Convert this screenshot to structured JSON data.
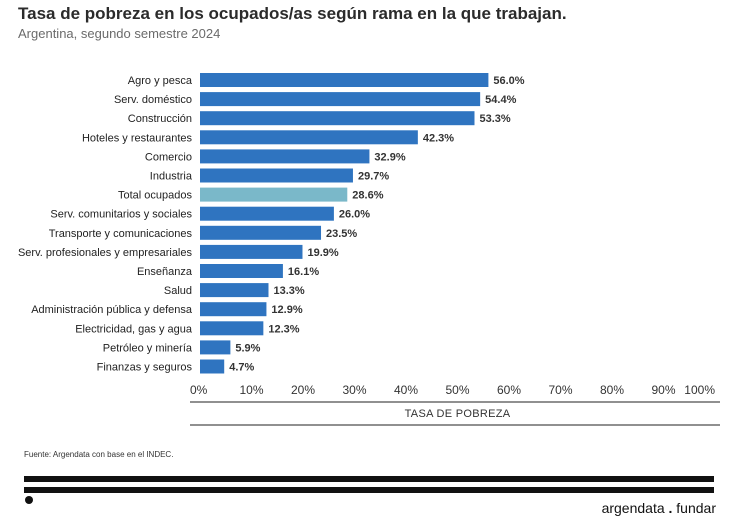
{
  "header": {
    "title": "Tasa de pobreza en los ocupados/as según rama en la que trabajan.",
    "subtitle": "Argentina, segundo semestre 2024"
  },
  "footer": {
    "source": "Fuente: Argendata con base en el INDEC.",
    "brand_left": "argendata",
    "brand_sep": ".",
    "brand_right": "fundar"
  },
  "colors": {
    "bar": "#2f74c0",
    "highlight": "#7ab8c9",
    "axis": "#222222"
  },
  "chart_data": {
    "type": "bar",
    "orientation": "horizontal",
    "categories": [
      "Agro y pesca",
      "Serv. doméstico",
      "Construcción",
      "Hoteles y restaurantes",
      "Comercio",
      "Industria",
      "Total ocupados",
      "Serv. comunitarios y sociales",
      "Transporte y comunicaciones",
      "Serv. profesionales y empresariales",
      "Enseñanza",
      "Salud",
      "Administración pública y defensa",
      "Electricidad, gas y agua",
      "Petróleo y minería",
      "Finanzas y seguros"
    ],
    "values": [
      56.0,
      54.4,
      53.3,
      42.3,
      32.9,
      29.7,
      28.6,
      26.0,
      23.5,
      19.9,
      16.1,
      13.3,
      12.9,
      12.3,
      5.9,
      4.7
    ],
    "value_labels": [
      "56.0%",
      "54.4%",
      "53.3%",
      "42.3%",
      "32.9%",
      "29.7%",
      "28.6%",
      "26.0%",
      "23.5%",
      "19.9%",
      "16.1%",
      "13.3%",
      "12.9%",
      "12.3%",
      "5.9%",
      "4.7%"
    ],
    "highlight": "Total ocupados",
    "xlim": [
      0,
      100
    ],
    "xticks": [
      "0%",
      "10%",
      "20%",
      "30%",
      "40%",
      "50%",
      "60%",
      "70%",
      "80%",
      "90%",
      "100%"
    ],
    "xlabel": "TASA DE POBREZA",
    "grid": false
  }
}
